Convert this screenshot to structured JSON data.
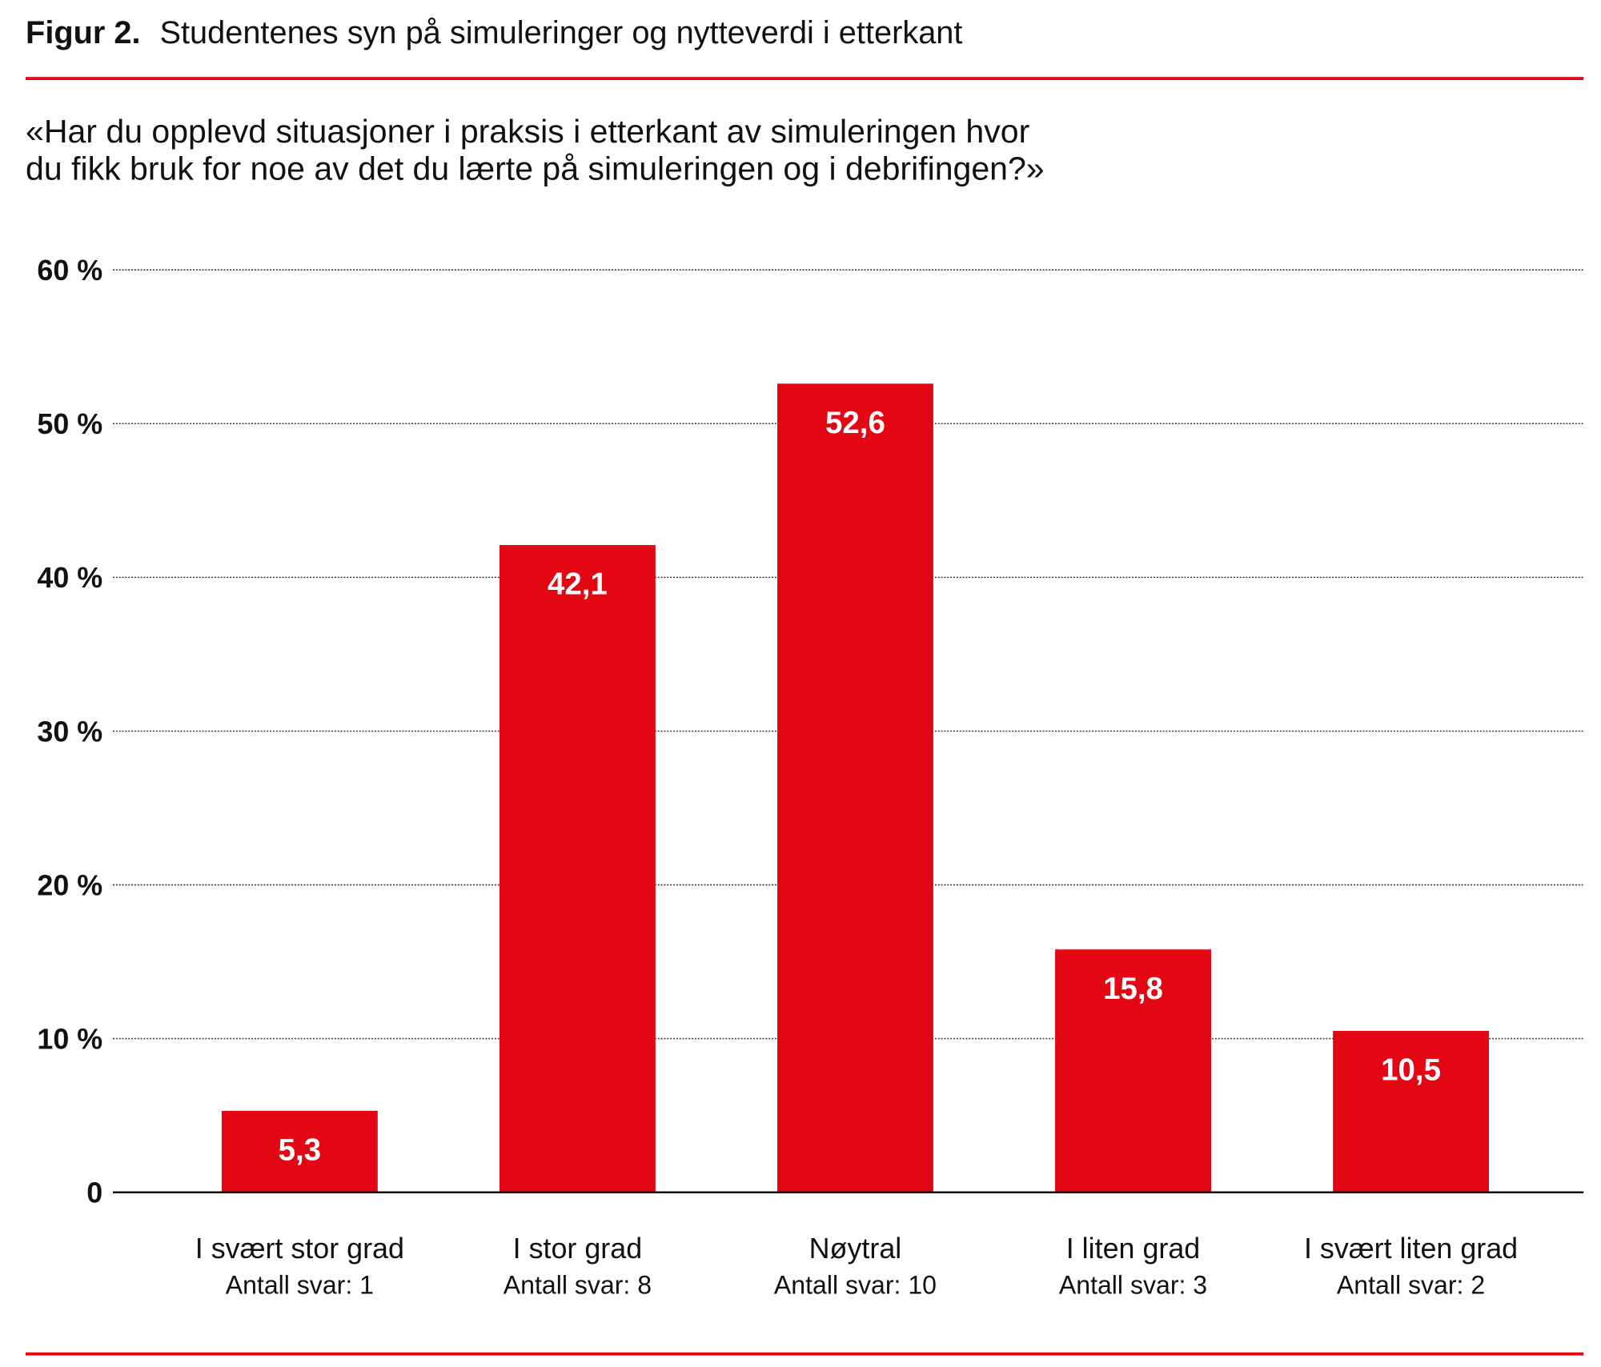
{
  "figure": {
    "label": "Figur 2.",
    "title": "Studentenes syn på simuleringer og nytteverdi i etterkant",
    "question_lines": [
      "«Har du opplevd situasjoner i praksis i etterkant av simuleringen hvor",
      "du fikk bruk for noe av det du lærte på simuleringen og i debrifingen?»"
    ]
  },
  "colors": {
    "bar": "#e30613",
    "rule": "#e30613",
    "text": "#111111",
    "bar_label": "#ffffff"
  },
  "chart_data": {
    "type": "bar",
    "categories": [
      "I svært stor grad",
      "I stor grad",
      "Nøytral",
      "I liten grad",
      "I svært liten grad"
    ],
    "sublabels": [
      "Antall svar: 1",
      "Antall svar: 8",
      "Antall svar: 10",
      "Antall svar: 3",
      "Antall svar: 2"
    ],
    "values": [
      5.3,
      42.1,
      52.6,
      15.8,
      10.5
    ],
    "data_labels": [
      "5,3",
      "42,1",
      "52,6",
      "15,8",
      "10,5"
    ],
    "ylim": [
      0,
      60
    ],
    "yticks": [
      0,
      10,
      20,
      30,
      40,
      50,
      60
    ],
    "ytick_labels": [
      "0",
      "10 %",
      "20 %",
      "30 %",
      "40 %",
      "50 %",
      "60 %"
    ],
    "grid": true,
    "grid_style": "dotted",
    "legend": "none"
  }
}
